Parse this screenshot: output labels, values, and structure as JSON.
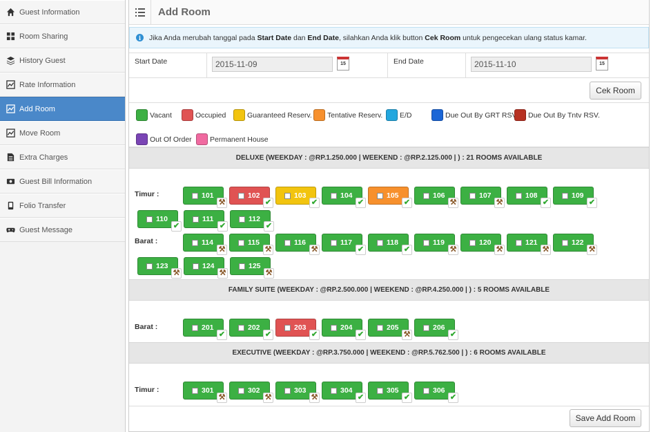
{
  "sidebar": {
    "items": [
      {
        "label": "Guest Information",
        "icon": "home-icon"
      },
      {
        "label": "Room Sharing",
        "icon": "grid-icon"
      },
      {
        "label": "History Guest",
        "icon": "layers-icon"
      },
      {
        "label": "Rate Information",
        "icon": "chart-icon"
      },
      {
        "label": "Add Room",
        "icon": "chart-icon"
      },
      {
        "label": "Move Room",
        "icon": "chart-icon"
      },
      {
        "label": "Extra Charges",
        "icon": "document-icon"
      },
      {
        "label": "Guest Bill Information",
        "icon": "money-icon"
      },
      {
        "label": "Folio Transfer",
        "icon": "phone-icon"
      },
      {
        "label": "Guest Message",
        "icon": "gamepad-icon"
      }
    ],
    "active_index": 4
  },
  "header": {
    "title": "Add Room"
  },
  "info": {
    "p1": "Jika Anda merubah tanggal pada ",
    "b1": "Start Date",
    "p2": " dan ",
    "b2": "End Date",
    "p3": ", silahkan Anda klik button ",
    "b3": "Cek Room",
    "p4": " untuk pengecekan ulang status kamar."
  },
  "dates": {
    "start_label": "Start Date",
    "start_value": "2015-11-09",
    "end_label": "End Date",
    "end_value": "2015-11-10",
    "calendar_day": "15"
  },
  "buttons": {
    "cek_room": "Cek Room",
    "save_add_room": "Save Add Room"
  },
  "legend": [
    {
      "label": "Vacant",
      "color": "#3cb043"
    },
    {
      "label": "Occupied",
      "color": "#e05353"
    },
    {
      "label": "Guaranteed Reserv.",
      "color": "#f2c40f"
    },
    {
      "label": "Tentative Reserv.",
      "color": "#f7902d"
    },
    {
      "label": "E/D",
      "color": "#23a7de"
    },
    {
      "label": "Due Out By GRT RSV.",
      "color": "#1b66d6"
    },
    {
      "label": "Due Out By Tntv RSV.",
      "color": "#b73122"
    },
    {
      "label": "Out Of Order",
      "color": "#7a45b5"
    },
    {
      "label": "Permanent House",
      "color": "#f06aa0"
    }
  ],
  "sections": [
    {
      "heading": "DELUXE (WEEKDAY : @RP.1.250.000 | WEEKEND : @RP.2.125.000 | ) : 21 ROOMS AVAILABLE",
      "rows": [
        {
          "label": "Timur :",
          "rooms": [
            {
              "no": "101",
              "status": "vacant",
              "mark": "broom"
            },
            {
              "no": "102",
              "status": "occupied",
              "mark": "check"
            },
            {
              "no": "103",
              "status": "guaranteed",
              "mark": "check"
            },
            {
              "no": "104",
              "status": "vacant",
              "mark": "check"
            },
            {
              "no": "105",
              "status": "tentative",
              "mark": "check"
            },
            {
              "no": "106",
              "status": "vacant",
              "mark": "broom"
            },
            {
              "no": "107",
              "status": "vacant",
              "mark": "broom"
            },
            {
              "no": "108",
              "status": "vacant",
              "mark": "check"
            },
            {
              "no": "109",
              "status": "vacant",
              "mark": "check"
            },
            {
              "no": "110",
              "status": "vacant",
              "mark": "check"
            },
            {
              "no": "111",
              "status": "vacant",
              "mark": "check"
            },
            {
              "no": "112",
              "status": "vacant",
              "mark": "check"
            }
          ]
        },
        {
          "label": "Barat :",
          "rooms": [
            {
              "no": "114",
              "status": "vacant",
              "mark": "broom"
            },
            {
              "no": "115",
              "status": "vacant",
              "mark": "broom"
            },
            {
              "no": "116",
              "status": "vacant",
              "mark": "broom"
            },
            {
              "no": "117",
              "status": "vacant",
              "mark": "check"
            },
            {
              "no": "118",
              "status": "vacant",
              "mark": "check"
            },
            {
              "no": "119",
              "status": "vacant",
              "mark": "broom"
            },
            {
              "no": "120",
              "status": "vacant",
              "mark": "broom"
            },
            {
              "no": "121",
              "status": "vacant",
              "mark": "broom"
            },
            {
              "no": "122",
              "status": "vacant",
              "mark": "broom"
            },
            {
              "no": "123",
              "status": "vacant",
              "mark": "broom"
            },
            {
              "no": "124",
              "status": "vacant",
              "mark": "broom"
            },
            {
              "no": "125",
              "status": "vacant",
              "mark": "broom"
            }
          ]
        }
      ]
    },
    {
      "heading": "FAMILY SUITE (WEEKDAY : @RP.2.500.000 | WEEKEND : @RP.4.250.000 | ) : 5 ROOMS AVAILABLE",
      "rows": [
        {
          "label": "Barat :",
          "rooms": [
            {
              "no": "201",
              "status": "vacant",
              "mark": "check"
            },
            {
              "no": "202",
              "status": "vacant",
              "mark": "check"
            },
            {
              "no": "203",
              "status": "occupied",
              "mark": "check"
            },
            {
              "no": "204",
              "status": "vacant",
              "mark": "check"
            },
            {
              "no": "205",
              "status": "vacant",
              "mark": "broom"
            },
            {
              "no": "206",
              "status": "vacant",
              "mark": "check"
            }
          ]
        }
      ]
    },
    {
      "heading": "EXECUTIVE (WEEKDAY : @RP.3.750.000 | WEEKEND : @RP.5.762.500 | ) : 6 ROOMS AVAILABLE",
      "rows": [
        {
          "label": "Timur :",
          "rooms": [
            {
              "no": "301",
              "status": "vacant",
              "mark": "broom"
            },
            {
              "no": "302",
              "status": "vacant",
              "mark": "broom"
            },
            {
              "no": "303",
              "status": "vacant",
              "mark": "broom"
            },
            {
              "no": "304",
              "status": "vacant",
              "mark": "check"
            },
            {
              "no": "305",
              "status": "vacant",
              "mark": "check"
            },
            {
              "no": "306",
              "status": "vacant",
              "mark": "check"
            }
          ]
        }
      ]
    }
  ],
  "status_colors": {
    "vacant": "#3cb043",
    "occupied": "#e05353",
    "guaranteed": "#f2c40f",
    "tentative": "#f7902d"
  }
}
